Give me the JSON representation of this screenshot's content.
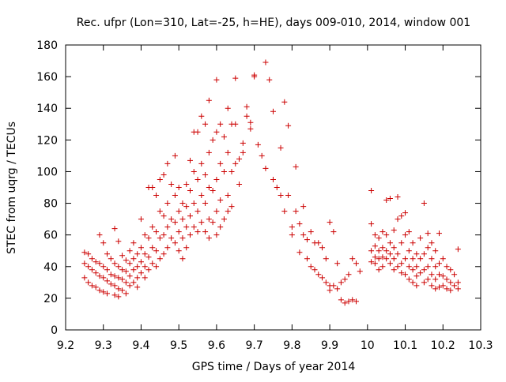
{
  "chart_data": {
    "type": "scatter",
    "title": "Rec. ufpr (Lon=310, Lat=-25, h=HE), days 009-010, 2014, window 001",
    "xlabel": "GPS time / Days of year 2014",
    "ylabel": "STEC from uqrg / TECUs",
    "xlim": [
      9.2,
      10.3
    ],
    "ylim": [
      0,
      180
    ],
    "xticks": [
      "9.2",
      "9.3",
      "9.4",
      "9.5",
      "9.6",
      "9.7",
      "9.8",
      "9.9",
      "10",
      "10.1",
      "10.2",
      "10.3"
    ],
    "yticks": [
      "0",
      "20",
      "40",
      "60",
      "80",
      "100",
      "120",
      "140",
      "160",
      "180"
    ],
    "grid": false,
    "marker": "+",
    "color": "#cc0000",
    "series": [
      {
        "name": "STEC",
        "points": [
          [
            9.25,
            49
          ],
          [
            9.25,
            42
          ],
          [
            9.25,
            33
          ],
          [
            9.26,
            48
          ],
          [
            9.26,
            40
          ],
          [
            9.26,
            30
          ],
          [
            9.27,
            45
          ],
          [
            9.27,
            38
          ],
          [
            9.27,
            28
          ],
          [
            9.28,
            43
          ],
          [
            9.28,
            36
          ],
          [
            9.28,
            27
          ],
          [
            9.29,
            60
          ],
          [
            9.29,
            42
          ],
          [
            9.29,
            34
          ],
          [
            9.29,
            25
          ],
          [
            9.3,
            55
          ],
          [
            9.3,
            40
          ],
          [
            9.3,
            33
          ],
          [
            9.3,
            24
          ],
          [
            9.31,
            48
          ],
          [
            9.31,
            38
          ],
          [
            9.31,
            31
          ],
          [
            9.31,
            23
          ],
          [
            9.32,
            45
          ],
          [
            9.32,
            35
          ],
          [
            9.32,
            29
          ],
          [
            9.33,
            64
          ],
          [
            9.33,
            42
          ],
          [
            9.33,
            34
          ],
          [
            9.33,
            28
          ],
          [
            9.33,
            22
          ],
          [
            9.34,
            56
          ],
          [
            9.34,
            40
          ],
          [
            9.34,
            33
          ],
          [
            9.34,
            26
          ],
          [
            9.34,
            21
          ],
          [
            9.35,
            47
          ],
          [
            9.35,
            38
          ],
          [
            9.35,
            32
          ],
          [
            9.35,
            25
          ],
          [
            9.36,
            44
          ],
          [
            9.36,
            37
          ],
          [
            9.36,
            30
          ],
          [
            9.36,
            23
          ],
          [
            9.37,
            50
          ],
          [
            9.37,
            42
          ],
          [
            9.37,
            34
          ],
          [
            9.37,
            28
          ],
          [
            9.38,
            55
          ],
          [
            9.38,
            45
          ],
          [
            9.38,
            38
          ],
          [
            9.38,
            30
          ],
          [
            9.39,
            48
          ],
          [
            9.39,
            40
          ],
          [
            9.39,
            33
          ],
          [
            9.39,
            27
          ],
          [
            9.4,
            70
          ],
          [
            9.4,
            52
          ],
          [
            9.4,
            43
          ],
          [
            9.4,
            36
          ],
          [
            9.41,
            60
          ],
          [
            9.41,
            48
          ],
          [
            9.41,
            40
          ],
          [
            9.41,
            33
          ],
          [
            9.42,
            90
          ],
          [
            9.42,
            58
          ],
          [
            9.42,
            46
          ],
          [
            9.42,
            38
          ],
          [
            9.43,
            90
          ],
          [
            9.43,
            65
          ],
          [
            9.43,
            52
          ],
          [
            9.43,
            42
          ],
          [
            9.44,
            85
          ],
          [
            9.44,
            62
          ],
          [
            9.44,
            50
          ],
          [
            9.44,
            40
          ],
          [
            9.45,
            95
          ],
          [
            9.45,
            75
          ],
          [
            9.45,
            58
          ],
          [
            9.45,
            45
          ],
          [
            9.46,
            98
          ],
          [
            9.46,
            72
          ],
          [
            9.46,
            60
          ],
          [
            9.46,
            48
          ],
          [
            9.47,
            105
          ],
          [
            9.47,
            80
          ],
          [
            9.47,
            65
          ],
          [
            9.47,
            52
          ],
          [
            9.48,
            92
          ],
          [
            9.48,
            70
          ],
          [
            9.48,
            58
          ],
          [
            9.49,
            110
          ],
          [
            9.49,
            85
          ],
          [
            9.49,
            68
          ],
          [
            9.49,
            55
          ],
          [
            9.5,
            90
          ],
          [
            9.5,
            75
          ],
          [
            9.5,
            62
          ],
          [
            9.5,
            50
          ],
          [
            9.51,
            80
          ],
          [
            9.51,
            70
          ],
          [
            9.51,
            58
          ],
          [
            9.51,
            45
          ],
          [
            9.52,
            92
          ],
          [
            9.52,
            78
          ],
          [
            9.52,
            65
          ],
          [
            9.52,
            52
          ],
          [
            9.53,
            107
          ],
          [
            9.53,
            88
          ],
          [
            9.53,
            72
          ],
          [
            9.53,
            60
          ],
          [
            9.54,
            125
          ],
          [
            9.54,
            100
          ],
          [
            9.54,
            80
          ],
          [
            9.54,
            65
          ],
          [
            9.55,
            125
          ],
          [
            9.55,
            95
          ],
          [
            9.55,
            75
          ],
          [
            9.55,
            62
          ],
          [
            9.56,
            135
          ],
          [
            9.56,
            105
          ],
          [
            9.56,
            85
          ],
          [
            9.56,
            68
          ],
          [
            9.57,
            130
          ],
          [
            9.57,
            98
          ],
          [
            9.57,
            80
          ],
          [
            9.57,
            62
          ],
          [
            9.58,
            145
          ],
          [
            9.58,
            112
          ],
          [
            9.58,
            90
          ],
          [
            9.58,
            70
          ],
          [
            9.58,
            58
          ],
          [
            9.59,
            120
          ],
          [
            9.59,
            88
          ],
          [
            9.59,
            68
          ],
          [
            9.6,
            158
          ],
          [
            9.6,
            125
          ],
          [
            9.6,
            95
          ],
          [
            9.6,
            75
          ],
          [
            9.6,
            60
          ],
          [
            9.61,
            130
          ],
          [
            9.61,
            105
          ],
          [
            9.61,
            82
          ],
          [
            9.61,
            65
          ],
          [
            9.62,
            122
          ],
          [
            9.62,
            100
          ],
          [
            9.62,
            70
          ],
          [
            9.63,
            140
          ],
          [
            9.63,
            112
          ],
          [
            9.63,
            85
          ],
          [
            9.63,
            75
          ],
          [
            9.64,
            130
          ],
          [
            9.64,
            100
          ],
          [
            9.64,
            78
          ],
          [
            9.65,
            159
          ],
          [
            9.65,
            130
          ],
          [
            9.65,
            105
          ],
          [
            9.66,
            108
          ],
          [
            9.66,
            92
          ],
          [
            9.67,
            118
          ],
          [
            9.67,
            112
          ],
          [
            9.68,
            135
          ],
          [
            9.68,
            141
          ],
          [
            9.69,
            131
          ],
          [
            9.69,
            127
          ],
          [
            9.7,
            161
          ],
          [
            9.7,
            160
          ],
          [
            9.71,
            117
          ],
          [
            9.72,
            110
          ],
          [
            9.73,
            169
          ],
          [
            9.73,
            102
          ],
          [
            9.74,
            158
          ],
          [
            9.75,
            138
          ],
          [
            9.75,
            95
          ],
          [
            9.76,
            90
          ],
          [
            9.77,
            115
          ],
          [
            9.77,
            85
          ],
          [
            9.78,
            144
          ],
          [
            9.78,
            75
          ],
          [
            9.79,
            129
          ],
          [
            9.79,
            85
          ],
          [
            9.8,
            65
          ],
          [
            9.8,
            60
          ],
          [
            9.81,
            103
          ],
          [
            9.81,
            75
          ],
          [
            9.82,
            67
          ],
          [
            9.82,
            49
          ],
          [
            9.83,
            78
          ],
          [
            9.83,
            60
          ],
          [
            9.84,
            57
          ],
          [
            9.84,
            45
          ],
          [
            9.85,
            62
          ],
          [
            9.85,
            40
          ],
          [
            9.86,
            55
          ],
          [
            9.86,
            38
          ],
          [
            9.87,
            55
          ],
          [
            9.87,
            35
          ],
          [
            9.88,
            52
          ],
          [
            9.88,
            33
          ],
          [
            9.89,
            45
          ],
          [
            9.89,
            30
          ],
          [
            9.9,
            68
          ],
          [
            9.9,
            28
          ],
          [
            9.9,
            25
          ],
          [
            9.91,
            62
          ],
          [
            9.91,
            28
          ],
          [
            9.92,
            42
          ],
          [
            9.92,
            26
          ],
          [
            9.93,
            30
          ],
          [
            9.93,
            19
          ],
          [
            9.94,
            32
          ],
          [
            9.94,
            17
          ],
          [
            9.95,
            35
          ],
          [
            9.95,
            18
          ],
          [
            9.96,
            45
          ],
          [
            9.96,
            19
          ],
          [
            9.97,
            42
          ],
          [
            9.97,
            18
          ],
          [
            9.98,
            37
          ],
          [
            10.01,
            88
          ],
          [
            10.01,
            67
          ],
          [
            10.01,
            50
          ],
          [
            10.01,
            43
          ],
          [
            10.02,
            60
          ],
          [
            10.02,
            53
          ],
          [
            10.02,
            46
          ],
          [
            10.02,
            42
          ],
          [
            10.03,
            58
          ],
          [
            10.03,
            50
          ],
          [
            10.03,
            45
          ],
          [
            10.03,
            38
          ],
          [
            10.04,
            62
          ],
          [
            10.04,
            52
          ],
          [
            10.04,
            46
          ],
          [
            10.04,
            40
          ],
          [
            10.05,
            82
          ],
          [
            10.05,
            60
          ],
          [
            10.05,
            50
          ],
          [
            10.05,
            45
          ],
          [
            10.06,
            83
          ],
          [
            10.06,
            55
          ],
          [
            10.06,
            48
          ],
          [
            10.06,
            42
          ],
          [
            10.07,
            63
          ],
          [
            10.07,
            52
          ],
          [
            10.07,
            45
          ],
          [
            10.07,
            38
          ],
          [
            10.08,
            84
          ],
          [
            10.08,
            70
          ],
          [
            10.08,
            48
          ],
          [
            10.08,
            40
          ],
          [
            10.09,
            72
          ],
          [
            10.09,
            55
          ],
          [
            10.09,
            42
          ],
          [
            10.09,
            36
          ],
          [
            10.1,
            74
          ],
          [
            10.1,
            60
          ],
          [
            10.1,
            45
          ],
          [
            10.1,
            35
          ],
          [
            10.11,
            62
          ],
          [
            10.11,
            50
          ],
          [
            10.11,
            40
          ],
          [
            10.11,
            32
          ],
          [
            10.12,
            55
          ],
          [
            10.12,
            45
          ],
          [
            10.12,
            38
          ],
          [
            10.12,
            30
          ],
          [
            10.13,
            48
          ],
          [
            10.13,
            40
          ],
          [
            10.13,
            34
          ],
          [
            10.13,
            28
          ],
          [
            10.14,
            58
          ],
          [
            10.14,
            45
          ],
          [
            10.14,
            36
          ],
          [
            10.15,
            80
          ],
          [
            10.15,
            48
          ],
          [
            10.15,
            38
          ],
          [
            10.15,
            30
          ],
          [
            10.16,
            61
          ],
          [
            10.16,
            52
          ],
          [
            10.16,
            40
          ],
          [
            10.16,
            32
          ],
          [
            10.17,
            55
          ],
          [
            10.17,
            45
          ],
          [
            10.17,
            35
          ],
          [
            10.17,
            28
          ],
          [
            10.18,
            50
          ],
          [
            10.18,
            40
          ],
          [
            10.18,
            32
          ],
          [
            10.18,
            26
          ],
          [
            10.19,
            61
          ],
          [
            10.19,
            42
          ],
          [
            10.19,
            35
          ],
          [
            10.19,
            27
          ],
          [
            10.2,
            45
          ],
          [
            10.2,
            34
          ],
          [
            10.2,
            28
          ],
          [
            10.21,
            40
          ],
          [
            10.21,
            32
          ],
          [
            10.21,
            26
          ],
          [
            10.22,
            38
          ],
          [
            10.22,
            30
          ],
          [
            10.22,
            25
          ],
          [
            10.23,
            35
          ],
          [
            10.23,
            28
          ],
          [
            10.24,
            51
          ],
          [
            10.24,
            30
          ],
          [
            10.24,
            26
          ]
        ]
      }
    ]
  }
}
